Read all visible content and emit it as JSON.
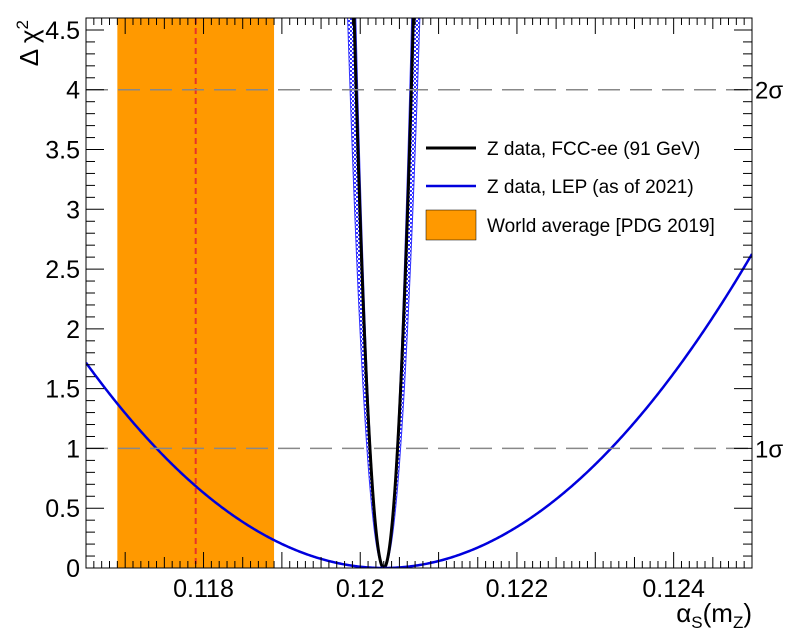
{
  "chart_data": {
    "type": "line",
    "title": "",
    "xlabel": "αS(mZ)",
    "xlabel_parts": {
      "main": "α",
      "sub_s": "S",
      "open": "(m",
      "sub_z": "Z",
      "close": ")"
    },
    "ylabel": "Δ χ2",
    "ylabel_parts": {
      "delta": "Δ",
      "chi": "χ",
      "sup": "2"
    },
    "xlim": [
      0.1165,
      0.125
    ],
    "ylim": [
      0,
      4.6
    ],
    "xticks": [
      {
        "value": 0.118,
        "label": "0.118"
      },
      {
        "value": 0.12,
        "label": "0.12"
      },
      {
        "value": 0.122,
        "label": "0.122"
      },
      {
        "value": 0.124,
        "label": "0.124"
      }
    ],
    "yticks": [
      {
        "value": 0,
        "label": "0"
      },
      {
        "value": 0.5,
        "label": "0.5"
      },
      {
        "value": 1,
        "label": "1"
      },
      {
        "value": 1.5,
        "label": "1.5"
      },
      {
        "value": 2,
        "label": "2"
      },
      {
        "value": 2.5,
        "label": "2.5"
      },
      {
        "value": 3,
        "label": "3"
      },
      {
        "value": 3.5,
        "label": "3.5"
      },
      {
        "value": 4,
        "label": "4"
      },
      {
        "value": 4.5,
        "label": "4.5"
      }
    ],
    "world_average": {
      "center": 0.1179,
      "low": 0.1169,
      "high": 0.1189,
      "color": "#ff9900",
      "line_color": "#e8322a"
    },
    "sigma_lines": [
      {
        "value": 1,
        "label": "1σ"
      },
      {
        "value": 4,
        "label": "2σ"
      }
    ],
    "series": [
      {
        "name": "Z data, FCC-ee (91 GeV)",
        "kind": "parabola",
        "min_x": 0.1203,
        "sigma": 0.000176,
        "color": "#000000",
        "band_sigma_low": 0.000166,
        "band_sigma_high": 0.000215,
        "band_color": "#3333ff"
      },
      {
        "name": "Z data, LEP (as of 2021)",
        "kind": "parabola",
        "min_x": 0.1203,
        "sigma": 0.0029,
        "color": "#0000dd"
      }
    ],
    "legend": {
      "position": "top-right",
      "entries": [
        {
          "label": "Z data, FCC-ee (91 GeV)",
          "type": "line",
          "color": "#000000"
        },
        {
          "label": "Z data, LEP (as of 2021)",
          "type": "line",
          "color": "#0000dd"
        },
        {
          "label": "World average [PDG 2019]",
          "type": "box",
          "color": "#ff9900"
        }
      ]
    }
  }
}
